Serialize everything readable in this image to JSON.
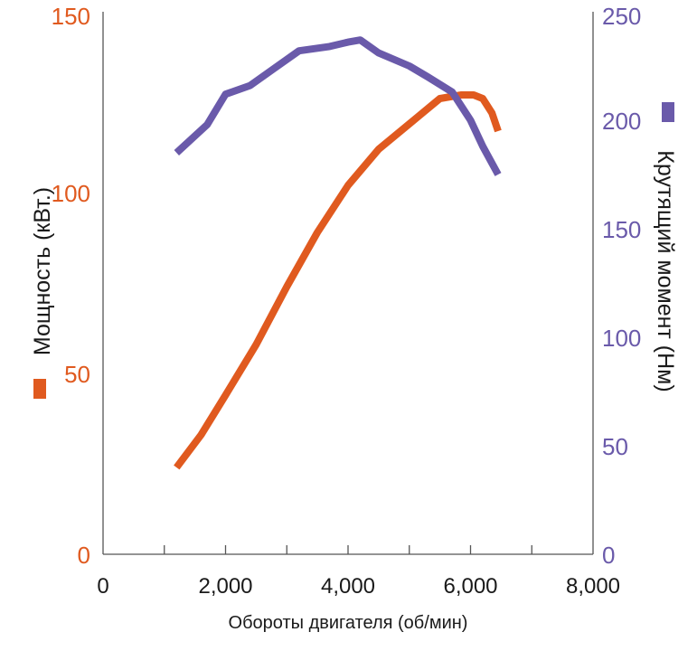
{
  "chart_data": {
    "type": "line",
    "xlabel": "Обороты двигателя (об/мин)",
    "xlim": [
      0,
      8000
    ],
    "x_ticks": [
      "0",
      "2,000",
      "4,000",
      "6,000",
      "8,000"
    ],
    "x_tick_values": [
      0,
      2000,
      4000,
      6000,
      8000
    ],
    "y_left": {
      "label": "Мощность (кВт.)",
      "lim": [
        0,
        150
      ],
      "ticks": [
        "0",
        "50",
        "100",
        "150"
      ],
      "tick_values": [
        0,
        50,
        100,
        150
      ],
      "color": "#e05a1f"
    },
    "y_right": {
      "label": "Крутящий момент (Нм)",
      "lim": [
        0,
        250
      ],
      "ticks": [
        "0",
        "50",
        "100",
        "150",
        "200",
        "250"
      ],
      "tick_values": [
        0,
        50,
        100,
        150,
        200,
        250
      ],
      "color": "#6a5aaa"
    },
    "grid": false,
    "legend": "color squares next to each y-axis label",
    "series": [
      {
        "name": "Мощность (кВт.)",
        "axis": "left",
        "color": "#e05a1f",
        "x": [
          1200,
          1600,
          2000,
          2500,
          3000,
          3500,
          4000,
          4500,
          5000,
          5500,
          5850,
          6050,
          6200,
          6350,
          6450
        ],
        "y": [
          24,
          33,
          44,
          58,
          74,
          89,
          102,
          112,
          119,
          126,
          127,
          127,
          126,
          122,
          117
        ]
      },
      {
        "name": "Крутящий момент (Нм)",
        "axis": "right",
        "color": "#6a5aaa",
        "x": [
          1200,
          1700,
          2000,
          2400,
          2800,
          3200,
          3700,
          4000,
          4200,
          4300,
          4500,
          5000,
          5300,
          5700,
          6000,
          6200,
          6450
        ],
        "y": [
          185,
          198,
          212,
          216,
          224,
          232,
          234,
          236,
          237,
          235,
          231,
          225,
          220,
          213,
          200,
          188,
          175
        ]
      }
    ]
  }
}
